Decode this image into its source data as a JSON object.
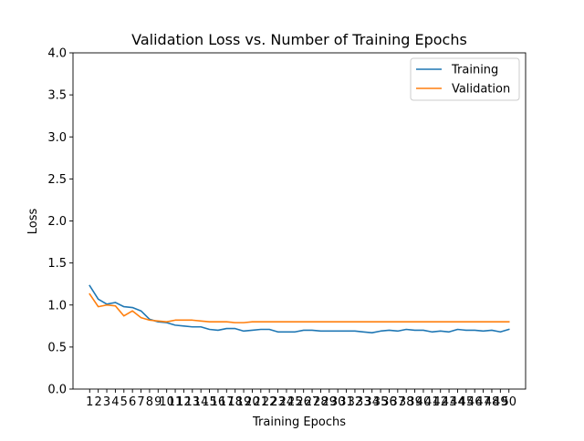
{
  "chart_data": {
    "type": "line",
    "title": "Validation Loss vs. Number of Training Epochs",
    "xlabel": "Training Epochs",
    "ylabel": "Loss",
    "x": [
      1,
      2,
      3,
      4,
      5,
      6,
      7,
      8,
      9,
      10,
      11,
      12,
      13,
      14,
      15,
      16,
      17,
      18,
      19,
      20,
      21,
      22,
      23,
      24,
      25,
      26,
      27,
      28,
      29,
      30,
      31,
      32,
      33,
      34,
      35,
      36,
      37,
      38,
      39,
      40,
      41,
      42,
      43,
      44,
      45,
      46,
      47,
      48,
      49,
      50
    ],
    "xticks": [
      "1",
      "2",
      "3",
      "4",
      "5",
      "6",
      "7",
      "8",
      "9",
      "10",
      "11",
      "12",
      "13",
      "14",
      "15",
      "16",
      "17",
      "18",
      "19",
      "20",
      "21",
      "22",
      "23",
      "24",
      "25",
      "26",
      "27",
      "28",
      "29",
      "30",
      "31",
      "32",
      "33",
      "34",
      "35",
      "36",
      "37",
      "38",
      "39",
      "40",
      "41",
      "42",
      "43",
      "44",
      "45",
      "46",
      "47",
      "48",
      "49",
      "50"
    ],
    "xlim": [
      -0.95,
      51.95
    ],
    "ylim": [
      0.0,
      4.0
    ],
    "yticks": [
      "0.0",
      "0.5",
      "1.0",
      "1.5",
      "2.0",
      "2.5",
      "3.0",
      "3.5",
      "4.0"
    ],
    "grid": false,
    "legend_position": "top-right",
    "series": [
      {
        "name": "Training",
        "color": "#1f77b4",
        "values": [
          1.23,
          1.07,
          1.01,
          1.03,
          0.98,
          0.97,
          0.93,
          0.83,
          0.8,
          0.79,
          0.76,
          0.75,
          0.74,
          0.74,
          0.71,
          0.7,
          0.72,
          0.72,
          0.69,
          0.7,
          0.71,
          0.71,
          0.68,
          0.68,
          0.68,
          0.7,
          0.7,
          0.69,
          0.69,
          0.69,
          0.69,
          0.69,
          0.68,
          0.67,
          0.69,
          0.7,
          0.69,
          0.71,
          0.7,
          0.7,
          0.68,
          0.69,
          0.68,
          0.71,
          0.7,
          0.7,
          0.69,
          0.7,
          0.68,
          0.71
        ]
      },
      {
        "name": "Validation",
        "color": "#ff7f0e",
        "values": [
          1.13,
          0.98,
          1.0,
          0.99,
          0.87,
          0.93,
          0.85,
          0.82,
          0.81,
          0.8,
          0.82,
          0.82,
          0.82,
          0.81,
          0.8,
          0.8,
          0.8,
          0.79,
          0.79,
          0.8,
          0.8,
          0.8,
          0.8,
          0.8,
          0.8,
          0.8,
          0.8,
          0.8,
          0.8,
          0.8,
          0.8,
          0.8,
          0.8,
          0.8,
          0.8,
          0.8,
          0.8,
          0.8,
          0.8,
          0.8,
          0.8,
          0.8,
          0.8,
          0.8,
          0.8,
          0.8,
          0.8,
          0.8,
          0.8,
          0.8
        ]
      }
    ]
  }
}
